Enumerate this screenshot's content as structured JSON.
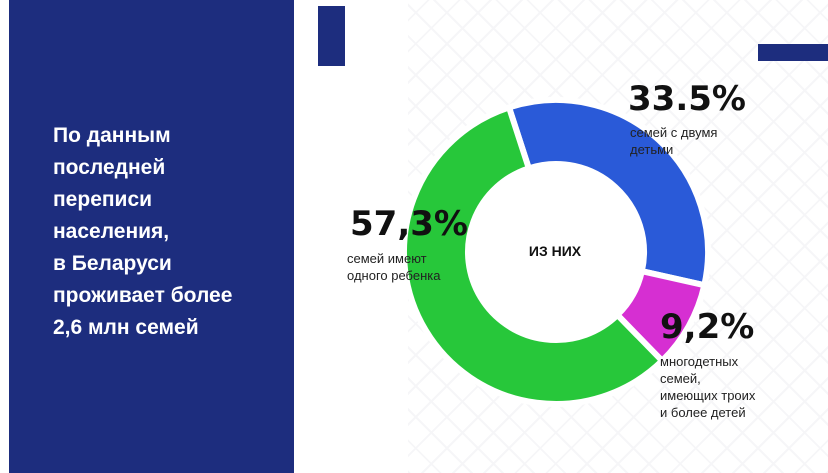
{
  "headline": {
    "lines": [
      "По данным",
      "последней",
      "переписи",
      "населения,",
      "в Беларуси",
      "проживает более",
      "2,6 млн семей"
    ]
  },
  "colors": {
    "panel": "#1d2d7e",
    "two_children": "#2a5ad8",
    "large_families": "#d62fd2",
    "one_child": "#27c73a",
    "hole": "#ffffff"
  },
  "chart_data": {
    "type": "pie",
    "center_label": "ИЗ НИХ",
    "slices": [
      {
        "value": 33.5,
        "label": "33.5%",
        "desc": [
          "семей с двумя",
          "детьми"
        ],
        "color": "#2a5ad8"
      },
      {
        "value": 9.2,
        "label": "9,2%",
        "desc": [
          "многодетных",
          "семей,",
          "имеющих троих",
          "и более детей"
        ],
        "color": "#d62fd2"
      },
      {
        "value": 57.3,
        "label": "57,3%",
        "desc": [
          "семей имеют",
          "одного ребенка"
        ],
        "color": "#27c73a"
      }
    ]
  }
}
